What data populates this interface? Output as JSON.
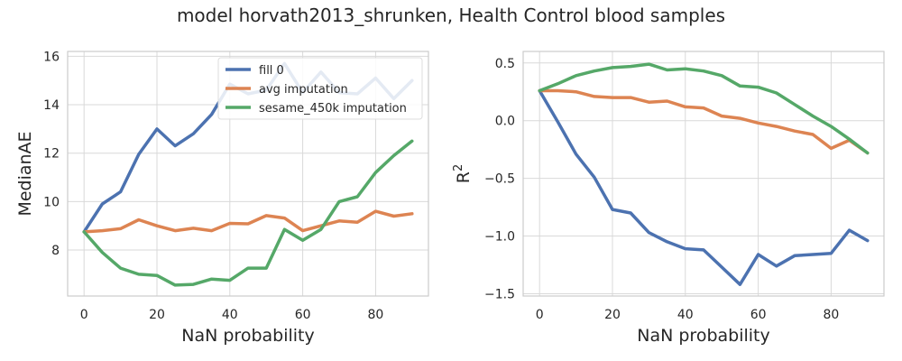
{
  "figure": {
    "title": "model horvath2013_shrunken, Health Control blood samples"
  },
  "chart_data": [
    {
      "type": "line",
      "title": "",
      "xlabel": "NaN probability",
      "ylabel": "MedianAE",
      "xlim": [
        -4.5,
        94.5
      ],
      "ylim": [
        6.1,
        16.2
      ],
      "xticks": [
        0,
        20,
        40,
        60,
        80
      ],
      "yticks": [
        8,
        10,
        12,
        14,
        16
      ],
      "grid": true,
      "legend": "top-right",
      "x": [
        0,
        5,
        10,
        15,
        20,
        25,
        30,
        35,
        40,
        45,
        50,
        55,
        60,
        65,
        70,
        75,
        80,
        85,
        90
      ],
      "series": [
        {
          "name": "fill 0",
          "color": "#4c72b0",
          "values": [
            8.75,
            9.9,
            10.4,
            11.95,
            13.0,
            12.3,
            12.8,
            13.6,
            14.85,
            14.45,
            14.6,
            15.7,
            14.5,
            15.35,
            14.5,
            14.45,
            15.1,
            14.25,
            15.0
          ]
        },
        {
          "name": "avg imputation",
          "color": "#dd8452",
          "values": [
            8.75,
            8.8,
            8.88,
            9.25,
            9.0,
            8.8,
            8.9,
            8.8,
            9.1,
            9.08,
            9.42,
            9.32,
            8.8,
            9.0,
            9.2,
            9.15,
            9.6,
            9.4,
            9.5
          ]
        },
        {
          "name": "sesame_450k imputation",
          "color": "#55a868",
          "values": [
            8.75,
            7.9,
            7.25,
            7.0,
            6.95,
            6.55,
            6.58,
            6.8,
            6.75,
            7.25,
            7.25,
            8.85,
            8.4,
            8.85,
            10.0,
            10.2,
            11.2,
            11.9,
            12.5
          ]
        }
      ]
    },
    {
      "type": "line",
      "title": "",
      "xlabel": "NaN probability",
      "ylabel": "R",
      "ylabel_superscript": "2",
      "xlim": [
        -4.5,
        94.5
      ],
      "ylim": [
        -1.52,
        0.6
      ],
      "xticks": [
        0,
        20,
        40,
        60,
        80
      ],
      "yticks": [
        0.5,
        0.0,
        -0.5,
        -1.0,
        -1.5
      ],
      "ytick_labels": [
        "0.5",
        "0.0",
        "−0.5",
        "−1.0",
        "−1.5"
      ],
      "grid": true,
      "x": [
        0,
        5,
        10,
        15,
        20,
        25,
        30,
        35,
        40,
        45,
        50,
        55,
        60,
        65,
        70,
        75,
        80,
        85,
        90
      ],
      "series": [
        {
          "name": "fill 0",
          "color": "#4c72b0",
          "values": [
            0.26,
            -0.01,
            -0.29,
            -0.49,
            -0.77,
            -0.8,
            -0.97,
            -1.05,
            -1.11,
            -1.12,
            -1.27,
            -1.42,
            -1.16,
            -1.26,
            -1.17,
            -1.16,
            -1.15,
            -0.95,
            -1.04
          ]
        },
        {
          "name": "avg imputation",
          "color": "#dd8452",
          "values": [
            0.26,
            0.26,
            0.25,
            0.21,
            0.2,
            0.2,
            0.16,
            0.17,
            0.12,
            0.11,
            0.04,
            0.02,
            -0.02,
            -0.05,
            -0.09,
            -0.12,
            -0.24,
            -0.17,
            -0.28
          ]
        },
        {
          "name": "sesame_450k imputation",
          "color": "#55a868",
          "values": [
            0.26,
            0.32,
            0.39,
            0.43,
            0.46,
            0.47,
            0.49,
            0.44,
            0.45,
            0.43,
            0.39,
            0.3,
            0.29,
            0.24,
            0.14,
            0.04,
            -0.05,
            -0.16,
            -0.28
          ]
        }
      ]
    }
  ]
}
